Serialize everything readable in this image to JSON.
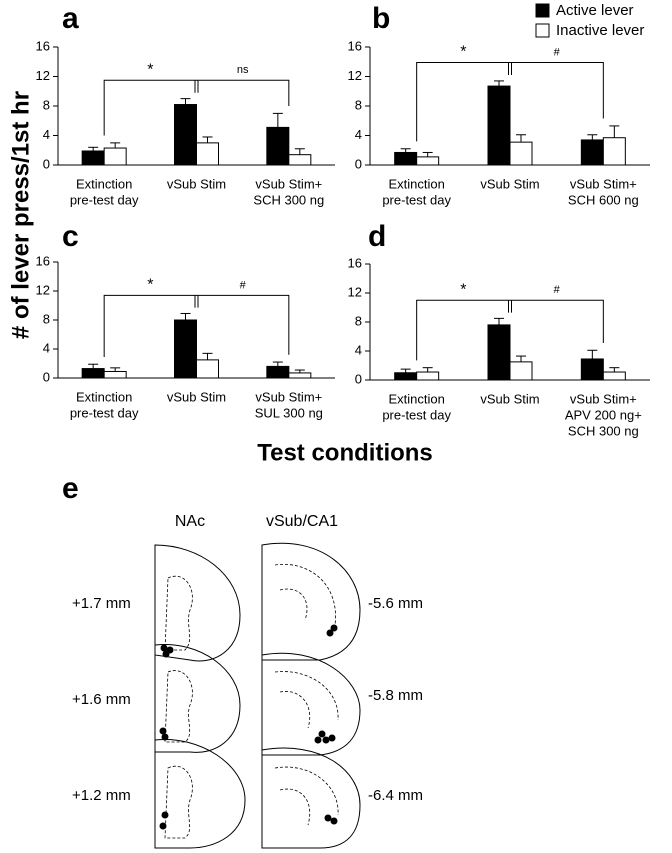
{
  "y_label": "# of lever press/1st hr",
  "x_label": "Test conditions",
  "chart_data": [
    {
      "type": "bar",
      "title": "a",
      "categories": [
        [
          "Extinction",
          "pre-test day"
        ],
        [
          "vSub Stim"
        ],
        [
          "vSub Stim+",
          "SCH 300 ng"
        ]
      ],
      "series": [
        {
          "name": "Active lever",
          "color": "#000000",
          "values": [
            1.9,
            8.2,
            5.1
          ],
          "errors": [
            0.5,
            0.8,
            1.9
          ]
        },
        {
          "name": "Inactive lever",
          "color": "#ffffff",
          "values": [
            2.3,
            3.0,
            1.4
          ],
          "errors": [
            0.7,
            0.8,
            0.8
          ]
        }
      ],
      "ylim": [
        0,
        16
      ],
      "yticks": [
        0,
        4,
        8,
        12,
        16
      ],
      "annotations": [
        "*",
        "ns"
      ]
    },
    {
      "type": "bar",
      "title": "b",
      "categories": [
        [
          "Extinction",
          "pre-test day"
        ],
        [
          "vSub Stim"
        ],
        [
          "vSub Stim+",
          "SCH 600 ng"
        ]
      ],
      "series": [
        {
          "name": "Active lever",
          "color": "#000000",
          "values": [
            1.7,
            10.7,
            3.4
          ],
          "errors": [
            0.5,
            0.7,
            0.7
          ]
        },
        {
          "name": "Inactive lever",
          "color": "#ffffff",
          "values": [
            1.1,
            3.1,
            3.7
          ],
          "errors": [
            0.6,
            1.0,
            1.6
          ]
        }
      ],
      "ylim": [
        0,
        16
      ],
      "yticks": [
        0,
        4,
        8,
        12,
        16
      ],
      "annotations": [
        "*",
        "#"
      ],
      "legend": "top-right"
    },
    {
      "type": "bar",
      "title": "c",
      "categories": [
        [
          "Extinction",
          "pre-test day"
        ],
        [
          "vSub Stim"
        ],
        [
          "vSub Stim+",
          "SUL 300 ng"
        ]
      ],
      "series": [
        {
          "name": "Active lever",
          "color": "#000000",
          "values": [
            1.3,
            8.0,
            1.6
          ],
          "errors": [
            0.6,
            0.9,
            0.6
          ]
        },
        {
          "name": "Inactive lever",
          "color": "#ffffff",
          "values": [
            0.9,
            2.5,
            0.7
          ],
          "errors": [
            0.5,
            0.9,
            0.4
          ]
        }
      ],
      "ylim": [
        0,
        16
      ],
      "yticks": [
        0,
        4,
        8,
        12,
        16
      ],
      "annotations": [
        "*",
        "#"
      ]
    },
    {
      "type": "bar",
      "title": "d",
      "categories": [
        [
          "Extinction",
          "pre-test day"
        ],
        [
          "vSub Stim"
        ],
        [
          "vSub Stim+",
          "APV 200 ng+",
          "SCH 300 ng"
        ]
      ],
      "series": [
        {
          "name": "Active lever",
          "color": "#000000",
          "values": [
            1.0,
            7.6,
            2.9
          ],
          "errors": [
            0.5,
            0.9,
            1.2
          ]
        },
        {
          "name": "Inactive lever",
          "color": "#ffffff",
          "values": [
            1.1,
            2.5,
            1.1
          ],
          "errors": [
            0.6,
            0.8,
            0.6
          ]
        }
      ],
      "ylim": [
        0,
        16
      ],
      "yticks": [
        0,
        4,
        8,
        12,
        16
      ],
      "annotations": [
        "*",
        "#"
      ]
    }
  ],
  "panel_e": {
    "letter": "e",
    "left_title": "NAc",
    "right_title": "vSub/CA1",
    "left_levels": [
      "+1.7 mm",
      "+1.6 mm",
      "+1.2 mm"
    ],
    "right_levels": [
      "-5.6 mm",
      "-5.8 mm",
      "-6.4 mm"
    ]
  }
}
